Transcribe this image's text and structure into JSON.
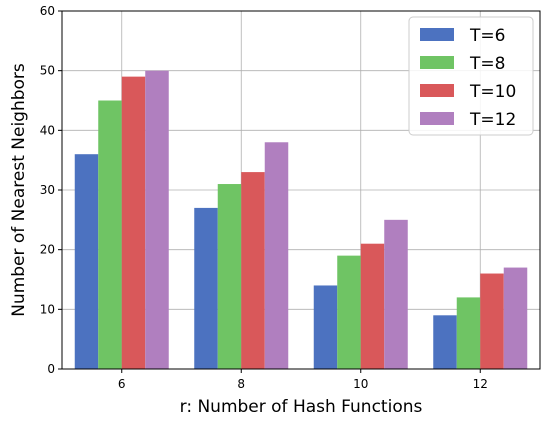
{
  "chart_data": {
    "type": "bar",
    "title": "",
    "xlabel": "r: Number of Hash Functions",
    "ylabel": "Number of Nearest Neighbors",
    "categories": [
      "6",
      "8",
      "10",
      "12"
    ],
    "ylim": [
      0,
      60
    ],
    "yticks": [
      "0",
      "10",
      "20",
      "30",
      "40",
      "50",
      "60"
    ],
    "grid": true,
    "legend_position": "top-right",
    "series": [
      {
        "name": "T=6",
        "color": "#4c72c0",
        "values": [
          36,
          27,
          14,
          9
        ]
      },
      {
        "name": "T=8",
        "color": "#6fc464",
        "values": [
          45,
          31,
          19,
          12
        ]
      },
      {
        "name": "T=10",
        "color": "#d9585a",
        "values": [
          49,
          33,
          21,
          16
        ]
      },
      {
        "name": "T=12",
        "color": "#b07fbf",
        "values": [
          50,
          38,
          25,
          17
        ]
      }
    ]
  }
}
